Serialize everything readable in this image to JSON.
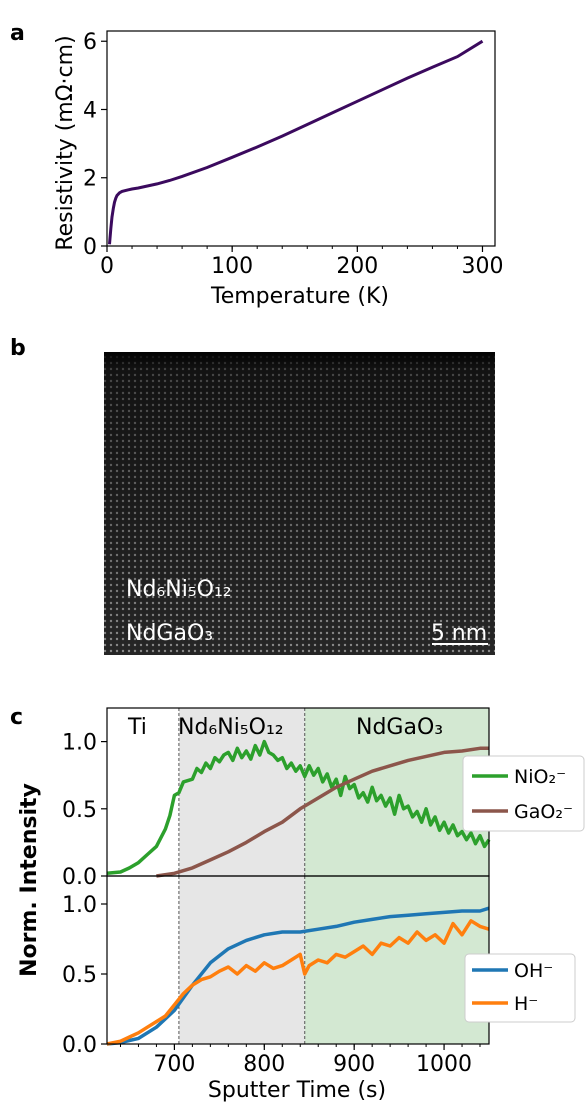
{
  "panel_labels": [
    "a",
    "b",
    "c"
  ],
  "colors": {
    "rho": "#3b0a5e",
    "nio2": "#2ca02c",
    "gao2": "#8c564b",
    "oh": "#1f77b4",
    "h": "#ff7f0e",
    "ti_region": "#ffffff",
    "film_region": "#e6e6e6",
    "substrate_region": "#d3e8d2"
  },
  "panel_b": {
    "film_label": "Nd₆Ni₅O₁₂",
    "substrate_label": "NdGaO₃",
    "scale_bar": "5 nm"
  },
  "chart_data": [
    {
      "type": "line",
      "xlabel": "Temperature (K)",
      "ylabel": "Resistivity (mΩ·cm)",
      "xlim": [
        0,
        310
      ],
      "ylim": [
        0,
        6.3
      ],
      "xticks": [
        0,
        100,
        200,
        300
      ],
      "yticks": [
        0,
        2,
        4,
        6
      ],
      "series": [
        {
          "x": [
            2,
            3,
            4,
            5,
            6,
            7,
            8,
            10,
            12,
            15,
            20,
            25,
            30,
            40,
            50,
            60,
            80,
            100,
            120,
            140,
            160,
            180,
            200,
            220,
            240,
            260,
            280,
            300
          ],
          "y": [
            0.05,
            0.5,
            0.85,
            1.1,
            1.28,
            1.4,
            1.48,
            1.56,
            1.6,
            1.63,
            1.67,
            1.7,
            1.74,
            1.82,
            1.92,
            2.04,
            2.3,
            2.6,
            2.9,
            3.22,
            3.56,
            3.9,
            4.24,
            4.58,
            4.92,
            5.24,
            5.55,
            6.0
          ]
        }
      ]
    },
    {
      "type": "line",
      "xlabel": "Sputter Time (s)",
      "ylabel": "Norm. Intensity",
      "xlim": [
        625,
        1050
      ],
      "xticks": [
        700,
        800,
        900,
        1000
      ],
      "yticks": [
        0.0,
        0.5,
        1.0
      ],
      "regions": [
        {
          "label": "Ti",
          "from": 625,
          "to": 705
        },
        {
          "label": "Nd₆Ni₅O₁₂",
          "from": 705,
          "to": 845
        },
        {
          "label": "NdGaO₃",
          "from": 845,
          "to": 1050
        }
      ],
      "top": {
        "ylim": [
          0,
          1.25
        ],
        "legend": "right",
        "series": [
          {
            "name": "NiO₂⁻",
            "x": [
              625,
              640,
              650,
              660,
              670,
              680,
              690,
              695,
              700,
              705,
              710,
              720,
              725,
              730,
              735,
              740,
              745,
              750,
              755,
              760,
              765,
              770,
              775,
              780,
              785,
              790,
              795,
              800,
              805,
              810,
              815,
              820,
              825,
              830,
              835,
              840,
              845,
              850,
              855,
              860,
              865,
              870,
              875,
              880,
              885,
              890,
              895,
              900,
              905,
              910,
              915,
              920,
              925,
              930,
              935,
              940,
              945,
              950,
              955,
              960,
              965,
              970,
              975,
              980,
              985,
              990,
              995,
              1000,
              1005,
              1010,
              1015,
              1020,
              1025,
              1030,
              1035,
              1040,
              1045,
              1050
            ],
            "y": [
              0.02,
              0.03,
              0.06,
              0.1,
              0.16,
              0.22,
              0.35,
              0.45,
              0.6,
              0.62,
              0.7,
              0.72,
              0.8,
              0.77,
              0.84,
              0.8,
              0.88,
              0.85,
              0.9,
              0.92,
              0.86,
              0.95,
              0.88,
              0.93,
              0.87,
              0.97,
              0.9,
              1.0,
              0.92,
              0.9,
              0.86,
              0.88,
              0.8,
              0.84,
              0.78,
              0.82,
              0.74,
              0.82,
              0.75,
              0.8,
              0.7,
              0.76,
              0.66,
              0.72,
              0.6,
              0.74,
              0.65,
              0.68,
              0.58,
              0.62,
              0.55,
              0.66,
              0.56,
              0.6,
              0.52,
              0.58,
              0.46,
              0.6,
              0.5,
              0.52,
              0.44,
              0.48,
              0.4,
              0.5,
              0.38,
              0.44,
              0.34,
              0.4,
              0.32,
              0.38,
              0.3,
              0.33,
              0.27,
              0.32,
              0.24,
              0.3,
              0.22,
              0.27
            ]
          },
          {
            "name": "GaO₂⁻",
            "x": [
              680,
              700,
              720,
              740,
              760,
              780,
              800,
              820,
              840,
              860,
              880,
              900,
              920,
              940,
              960,
              980,
              1000,
              1020,
              1040,
              1050
            ],
            "y": [
              0.0,
              0.02,
              0.06,
              0.12,
              0.18,
              0.25,
              0.33,
              0.4,
              0.5,
              0.58,
              0.66,
              0.72,
              0.78,
              0.82,
              0.86,
              0.89,
              0.92,
              0.93,
              0.95,
              0.95
            ]
          }
        ]
      },
      "bottom": {
        "ylim": [
          0,
          1.2
        ],
        "legend": "right",
        "series": [
          {
            "name": "OH⁻",
            "x": [
              625,
              640,
              660,
              680,
              700,
              720,
              740,
              760,
              780,
              800,
              820,
              840,
              860,
              880,
              900,
              920,
              940,
              960,
              980,
              1000,
              1020,
              1040,
              1050
            ],
            "y": [
              0.0,
              0.01,
              0.04,
              0.12,
              0.24,
              0.42,
              0.58,
              0.68,
              0.74,
              0.78,
              0.8,
              0.8,
              0.82,
              0.84,
              0.87,
              0.89,
              0.91,
              0.92,
              0.93,
              0.94,
              0.95,
              0.95,
              0.97
            ]
          },
          {
            "name": "H⁻",
            "x": [
              625,
              640,
              650,
              660,
              670,
              680,
              690,
              700,
              710,
              720,
              730,
              740,
              750,
              760,
              770,
              780,
              790,
              800,
              810,
              820,
              830,
              840,
              845,
              850,
              860,
              870,
              880,
              890,
              900,
              910,
              920,
              930,
              940,
              950,
              960,
              970,
              980,
              990,
              1000,
              1010,
              1020,
              1030,
              1040,
              1050
            ],
            "y": [
              0.0,
              0.02,
              0.05,
              0.08,
              0.12,
              0.16,
              0.2,
              0.28,
              0.36,
              0.42,
              0.46,
              0.48,
              0.52,
              0.55,
              0.5,
              0.56,
              0.52,
              0.58,
              0.54,
              0.56,
              0.6,
              0.64,
              0.5,
              0.56,
              0.6,
              0.58,
              0.64,
              0.62,
              0.66,
              0.7,
              0.64,
              0.72,
              0.7,
              0.76,
              0.72,
              0.8,
              0.74,
              0.78,
              0.72,
              0.86,
              0.78,
              0.88,
              0.84,
              0.82
            ]
          }
        ]
      }
    }
  ]
}
